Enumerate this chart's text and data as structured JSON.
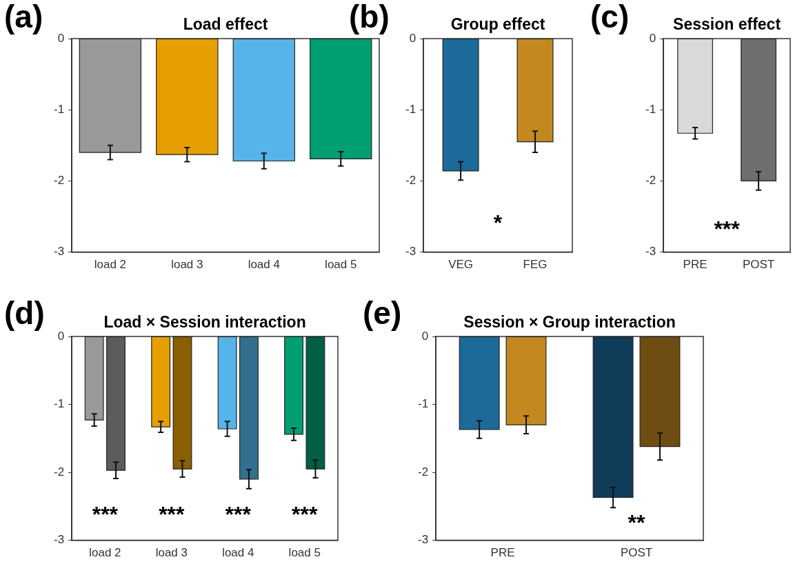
{
  "chart_data": [
    {
      "type": "bar",
      "title": "Load effect",
      "categories": [
        "load 2",
        "load 3",
        "load 4",
        "load 5"
      ],
      "values": [
        -1.6,
        -1.63,
        -1.72,
        -1.69
      ],
      "colors": [
        "#999999",
        "#e69f00",
        "#56b4e9",
        "#009e73"
      ],
      "errors": [
        0.1,
        0.1,
        0.11,
        0.1
      ],
      "ylim": [
        -3,
        0
      ],
      "yticks": [
        -3,
        -2,
        -1,
        0
      ],
      "annotations": [
        "(a)"
      ]
    },
    {
      "type": "bar",
      "title": "Group effect",
      "categories": [
        "VEG",
        "FEG"
      ],
      "values": [
        -1.86,
        -1.45
      ],
      "colors": [
        "#1b6a9a",
        "#c38820"
      ],
      "errors": [
        0.13,
        0.15
      ],
      "ylim": [
        -3,
        0
      ],
      "yticks": [
        -3,
        -2,
        -1,
        0
      ],
      "annotations": [
        "(b)",
        "*"
      ]
    },
    {
      "type": "bar",
      "title": "Session effect",
      "categories": [
        "PRE",
        "POST"
      ],
      "values": [
        -1.33,
        -2.0
      ],
      "colors": [
        "#d9d9d9",
        "#6e6e6e"
      ],
      "errors": [
        0.08,
        0.13
      ],
      "ylim": [
        -3,
        0
      ],
      "yticks": [
        -3,
        -2,
        -1,
        0
      ],
      "annotations": [
        "(c)",
        "***"
      ]
    },
    {
      "type": "bar",
      "title": "Load × Session interaction",
      "categories": [
        "load 2",
        "load 3",
        "load 4",
        "load 5"
      ],
      "series": [
        {
          "colors": [
            "#999999",
            "#e69f00",
            "#56b4e9",
            "#009e73"
          ],
          "values": [
            -1.23,
            -1.33,
            -1.36,
            -1.44
          ],
          "errors": [
            0.09,
            0.08,
            0.11,
            0.09
          ]
        },
        {
          "colors": [
            "#5c5c5c",
            "#8a5f00",
            "#33708f",
            "#005f45"
          ],
          "values": [
            -1.97,
            -1.95,
            -2.1,
            -1.95
          ],
          "errors": [
            0.12,
            0.12,
            0.14,
            0.13
          ]
        }
      ],
      "ylim": [
        -3,
        0
      ],
      "yticks": [
        -3,
        -2,
        -1,
        0
      ],
      "annotations": [
        "(d)",
        "***",
        "***",
        "***",
        "***"
      ]
    },
    {
      "type": "bar",
      "title": "Session × Group interaction",
      "categories": [
        "PRE",
        "POST"
      ],
      "series": [
        {
          "colors": [
            "#1b6a9a",
            "#0f3c58"
          ],
          "values": [
            -1.37,
            -2.37
          ],
          "errors": [
            0.13,
            0.15
          ]
        },
        {
          "colors": [
            "#c38820",
            "#6e4d12"
          ],
          "values": [
            -1.3,
            -1.62
          ],
          "errors": [
            0.13,
            0.2
          ]
        }
      ],
      "ylim": [
        -3,
        0
      ],
      "yticks": [
        -3,
        -2,
        -1,
        0
      ],
      "annotations": [
        "(e)",
        "**"
      ]
    }
  ]
}
